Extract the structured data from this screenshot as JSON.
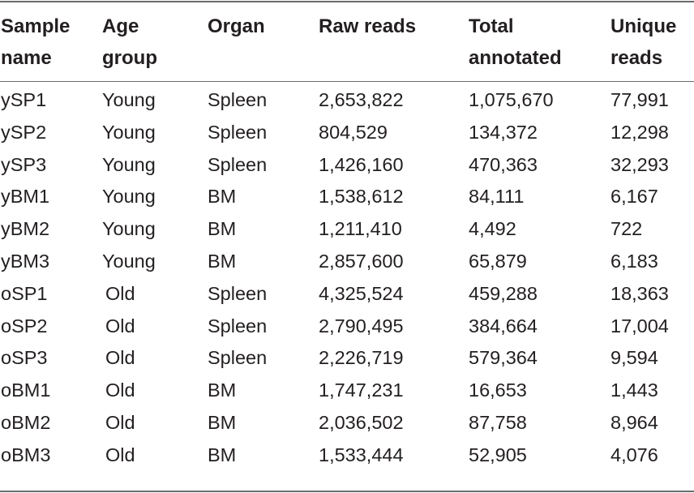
{
  "table": {
    "headers": [
      [
        "Sample",
        "name"
      ],
      [
        "Age",
        "group"
      ],
      [
        "Organ",
        ""
      ],
      [
        "Raw reads",
        ""
      ],
      [
        "Total",
        "annotated"
      ],
      [
        "Unique",
        "reads"
      ]
    ],
    "rows": [
      [
        "ySP1",
        "Young",
        "Spleen",
        "2,653,822",
        "1,075,670",
        "77,991"
      ],
      [
        "ySP2",
        "Young",
        "Spleen",
        "804,529",
        "134,372",
        "12,298"
      ],
      [
        "ySP3",
        "Young",
        "Spleen",
        "1,426,160",
        "470,363",
        "32,293"
      ],
      [
        "yBM1",
        "Young",
        "BM",
        "1,538,612",
        "84,111",
        "6,167"
      ],
      [
        "yBM2",
        "Young",
        "BM",
        "1,211,410",
        "4,492",
        "722"
      ],
      [
        "yBM3",
        "Young",
        "BM",
        "2,857,600",
        "65,879",
        "6,183"
      ],
      [
        "oSP1",
        "Old",
        "Spleen",
        "4,325,524",
        "459,288",
        "18,363"
      ],
      [
        "oSP2",
        "Old",
        "Spleen",
        "2,790,495",
        "384,664",
        "17,004"
      ],
      [
        "oSP3",
        "Old",
        "Spleen",
        "2,226,719",
        "579,364",
        "9,594"
      ],
      [
        "oBM1",
        "Old",
        "BM",
        "1,747,231",
        "16,653",
        "1,443"
      ],
      [
        "oBM2",
        "Old",
        "BM",
        "2,036,502",
        "87,758",
        "8,964"
      ],
      [
        "oBM3",
        "Old",
        "BM",
        "1,533,444",
        "52,905",
        "4,076"
      ]
    ]
  },
  "colors": {
    "text": "#231f20",
    "rule": "#6b6b6b"
  }
}
